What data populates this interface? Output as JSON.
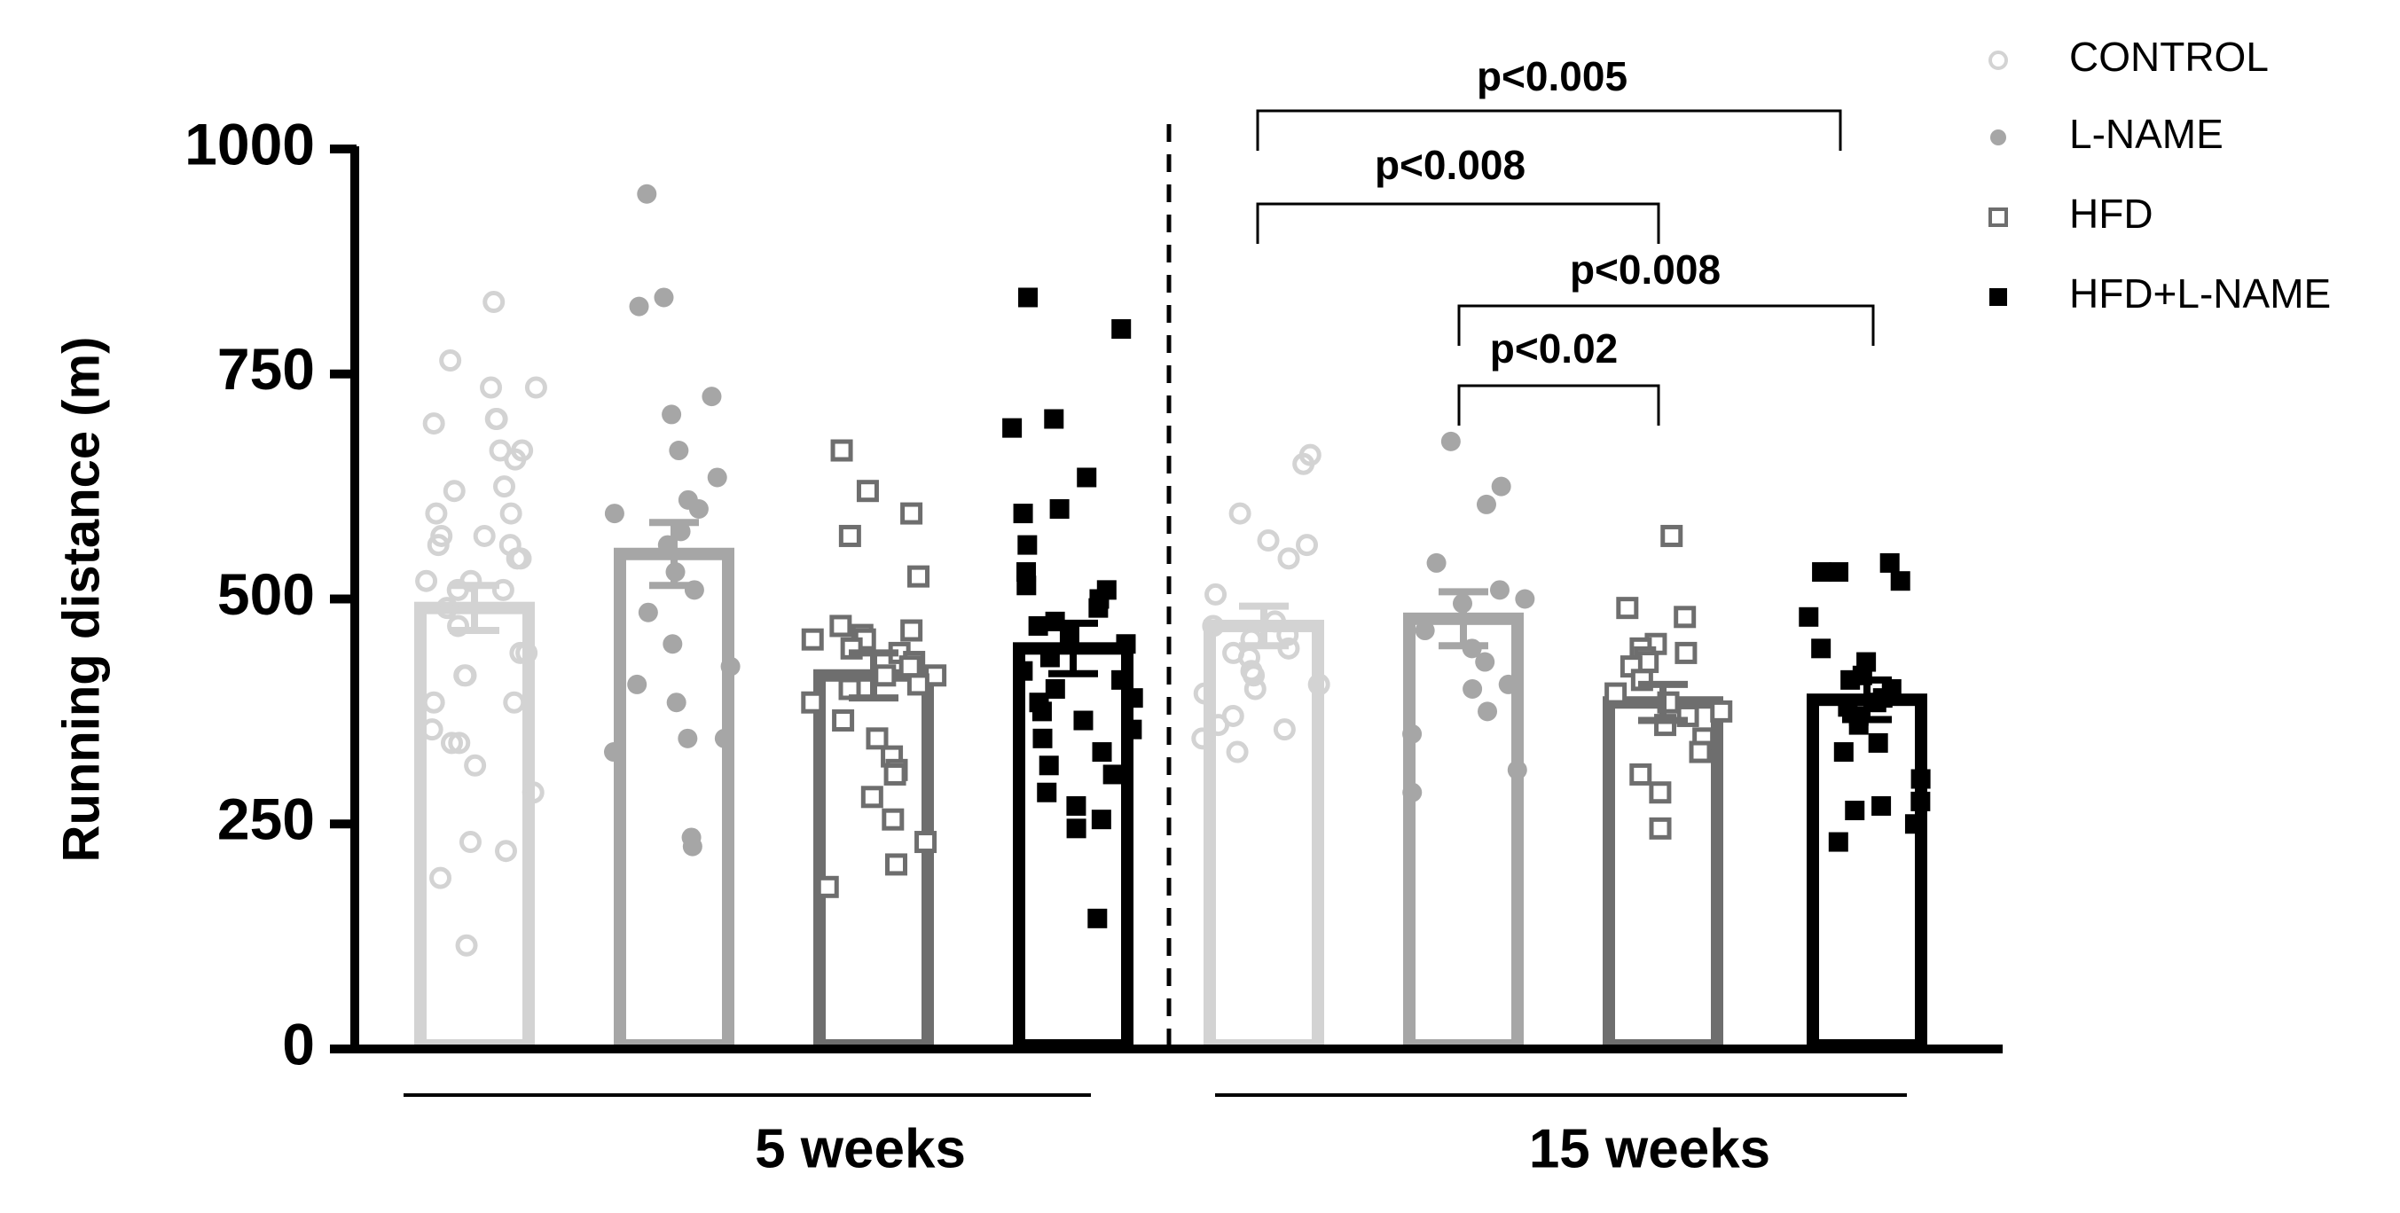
{
  "chart_data": {
    "type": "bar",
    "ylabel": "Running distance (m)",
    "ylim": [
      0,
      1000
    ],
    "yticks": [
      0,
      250,
      500,
      750,
      1000
    ],
    "ytick_labels": [
      "0",
      "250",
      "500",
      "750",
      "1000"
    ],
    "categories": [
      "5 weeks",
      "15 weeks"
    ],
    "divider": "dashed vertical line between 5 weeks and 15 weeks groups",
    "series": [
      {
        "name": "CONTROL",
        "marker": "open-circle",
        "color": "#d3d3d3",
        "values": [
          490,
          470
        ],
        "sem": [
          25,
          22
        ],
        "points": [
          [
            830,
            765,
            735,
            735,
            700,
            700,
            695,
            665,
            665,
            655,
            625,
            620,
            595,
            595,
            570,
            570,
            560,
            560,
            545,
            545,
            520,
            520,
            510,
            510,
            490,
            470,
            440,
            440,
            415,
            415,
            385,
            385,
            355,
            340,
            340,
            315,
            285,
            230,
            220,
            190,
            115
          ],
          [
            660,
            650,
            595,
            565,
            560,
            545,
            505,
            475,
            470,
            460,
            455,
            445,
            440,
            435,
            420,
            415,
            405,
            400,
            395,
            370,
            360,
            355,
            345,
            330
          ]
        ]
      },
      {
        "name": "L-NAME",
        "marker": "filled-circle",
        "color": "#a6a6a6",
        "values": [
          550,
          478
        ],
        "sem": [
          35,
          30
        ],
        "points": [
          [
            950,
            835,
            825,
            725,
            705,
            665,
            635,
            610,
            600,
            595,
            575,
            560,
            530,
            510,
            485,
            450,
            425,
            405,
            385,
            345,
            345,
            330,
            235,
            225
          ],
          [
            675,
            625,
            605,
            540,
            510,
            500,
            495,
            465,
            445,
            430,
            405,
            400,
            375,
            350,
            310,
            285
          ]
        ]
      },
      {
        "name": "HFD",
        "marker": "open-square",
        "color": "#6e6e6e",
        "values": [
          415,
          385
        ],
        "sem": [
          25,
          20
        ],
        "points": [
          [
            665,
            620,
            595,
            570,
            525,
            470,
            465,
            460,
            455,
            455,
            445,
            440,
            430,
            425,
            415,
            415,
            405,
            400,
            385,
            365,
            345,
            325,
            310,
            305,
            280,
            255,
            230,
            205,
            180
          ],
          [
            570,
            490,
            480,
            450,
            445,
            440,
            435,
            430,
            425,
            410,
            395,
            385,
            375,
            370,
            360,
            345,
            330,
            305,
            285,
            245
          ]
        ]
      },
      {
        "name": "HFD+L-NAME",
        "marker": "filled-square",
        "color": "#000000",
        "values": [
          445,
          388
        ],
        "sem": [
          28,
          22
        ],
        "points": [
          [
            835,
            800,
            700,
            690,
            635,
            600,
            595,
            560,
            530,
            515,
            510,
            500,
            490,
            475,
            470,
            460,
            450,
            435,
            420,
            410,
            400,
            390,
            385,
            375,
            365,
            355,
            345,
            330,
            315,
            305,
            285,
            270,
            255,
            245,
            145
          ],
          [
            540,
            530,
            530,
            520,
            480,
            445,
            430,
            415,
            410,
            400,
            390,
            385,
            380,
            370,
            360,
            340,
            330,
            300,
            275,
            270,
            265,
            250,
            230
          ]
        ]
      }
    ],
    "significance": [
      {
        "label": "p<0.005",
        "group": "15 weeks",
        "from": "CONTROL",
        "to": "HFD+L-NAME"
      },
      {
        "label": "p<0.008",
        "group": "15 weeks",
        "from": "CONTROL",
        "to": "HFD"
      },
      {
        "label": "p<0.008",
        "group": "15 weeks",
        "from": "L-NAME",
        "to": "HFD+L-NAME"
      },
      {
        "label": "p<0.02",
        "group": "15 weeks",
        "from": "L-NAME",
        "to": "HFD"
      }
    ],
    "legend": [
      "CONTROL",
      "L-NAME",
      "HFD",
      "HFD+L-NAME"
    ],
    "legend_position": "top-right"
  }
}
